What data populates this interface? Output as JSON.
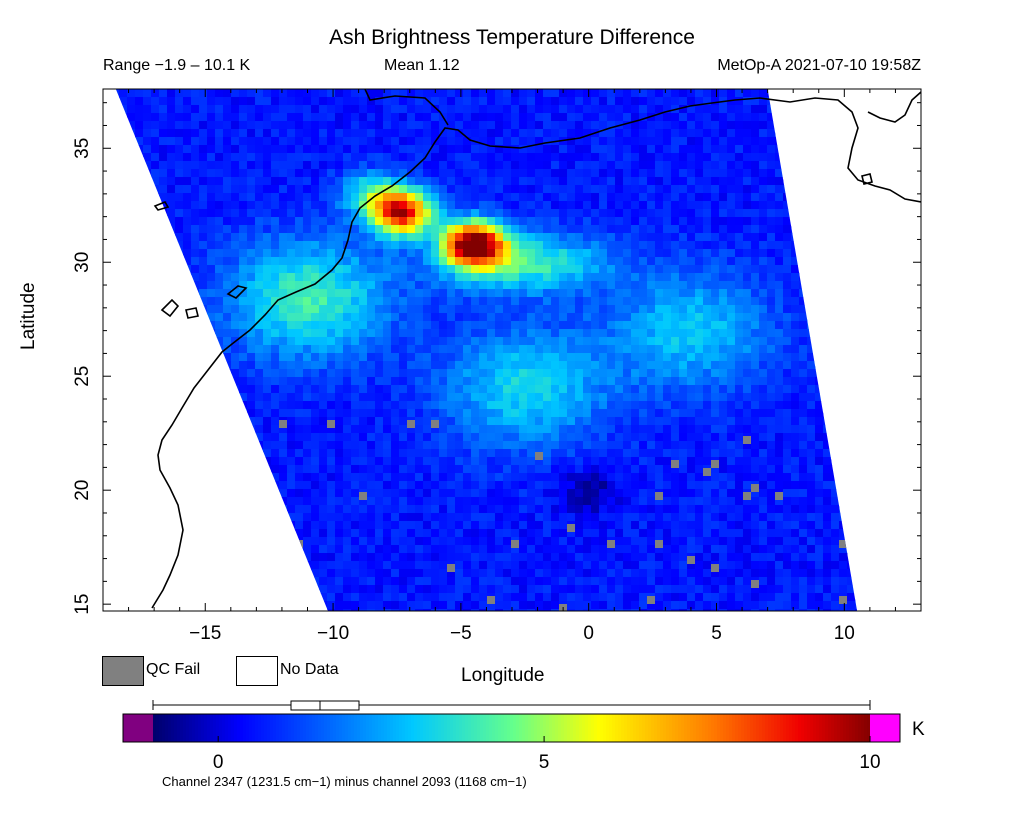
{
  "header": {
    "title": "Ash Brightness Temperature Difference",
    "range": "Range −1.9 – 10.1 K",
    "mean": "Mean 1.12",
    "satellite": "MetOp-A 2021-07-10 19:58Z"
  },
  "axes": {
    "xlabel": "Longitude",
    "ylabel": "Latitude",
    "xticks": [
      "−15",
      "−10",
      "−5",
      "0",
      "5",
      "10"
    ],
    "yticks": [
      "15",
      "20",
      "25",
      "30",
      "35"
    ]
  },
  "legend": {
    "qc_fail": "QC Fail",
    "no_data": "No Data"
  },
  "colorbar": {
    "tick_labels": [
      "0",
      "5",
      "10"
    ],
    "unit": "K",
    "under_color": "#800080",
    "over_color": "#ff00ff"
  },
  "footnote": "Channel 2347 (1231.5 cm−1) minus channel 2093 (1168 cm−1)",
  "colors": {
    "qc_fail": "#808080",
    "background": "#ffffff",
    "coastline": "#000000"
  },
  "chart_data": {
    "type": "heatmap",
    "title": "Ash Brightness Temperature Difference",
    "xlabel": "Longitude",
    "ylabel": "Latitude",
    "xlim": [
      -19,
      13
    ],
    "ylim": [
      14.7,
      37.6
    ],
    "value_range_K": [
      -1.9,
      10.1
    ],
    "mean_K": 1.12,
    "colorbar_range_K": [
      -1,
      10
    ],
    "swath_corners_lonlat": [
      [
        -18.5,
        37.6
      ],
      [
        7,
        37.6
      ],
      [
        10.5,
        14.7
      ],
      [
        -10.2,
        14.7
      ]
    ],
    "background_level_K": 0.6,
    "features": [
      {
        "name": "ash core",
        "lon": -4.5,
        "lat": 30.8,
        "value_K": 10.1
      },
      {
        "name": "ash core 2",
        "lon": -7.3,
        "lat": 32.2,
        "value_K": 9.0
      },
      {
        "name": "elevated plume band",
        "lon": -2.5,
        "lat": 30.0,
        "value_K": 4.0
      },
      {
        "name": "plume tail",
        "lon": -11.0,
        "lat": 28.4,
        "value_K": 4.0
      },
      {
        "name": "coastal ridge",
        "lon": -8.5,
        "lat": 33.0,
        "value_K": 3.5
      },
      {
        "name": "central plume",
        "lon": -2.5,
        "lat": 24.5,
        "value_K": 3.3
      },
      {
        "name": "eastern plume",
        "lon": 4.0,
        "lat": 27.0,
        "value_K": 3.0
      },
      {
        "name": "low region",
        "lon": 0.0,
        "lat": 20.0,
        "value_K": -0.6
      }
    ]
  }
}
